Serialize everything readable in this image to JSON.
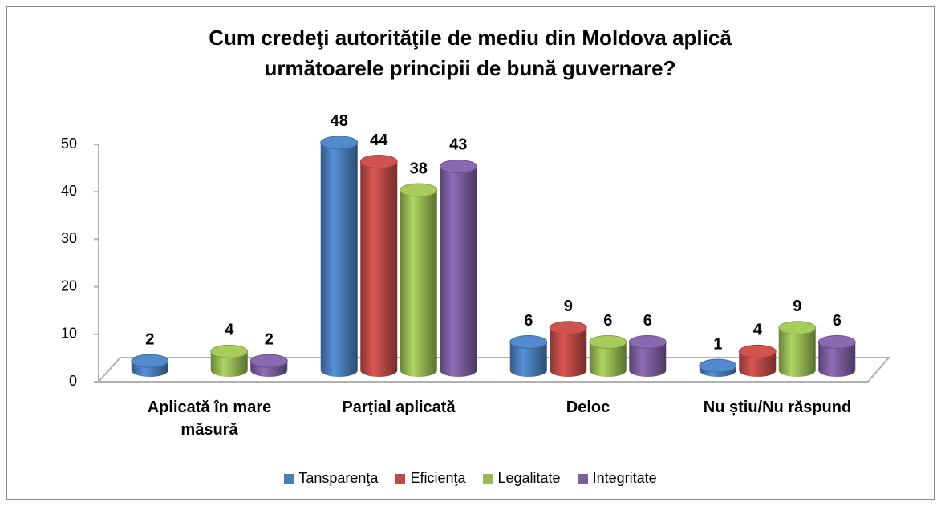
{
  "chart_data": {
    "type": "bar3d",
    "title": "Cum credeţi autorităţile de mediu din Moldova aplică următoarele principii de bună guvernare?",
    "categories": [
      "Aplicată în mare măsură",
      "Parțial aplicată",
      "Deloc",
      "Nu știu/Nu răspund"
    ],
    "series": [
      {
        "name": "Tansparenţa",
        "color": "#4a7ebb",
        "values": [
          2,
          48,
          6,
          1
        ]
      },
      {
        "name": "Eficienţa",
        "color": "#be4b48",
        "values": [
          null,
          44,
          9,
          4
        ]
      },
      {
        "name": "Legalitate",
        "color": "#98b954",
        "values": [
          4,
          38,
          6,
          9
        ]
      },
      {
        "name": "Integritate",
        "color": "#7d5fa0",
        "values": [
          2,
          43,
          6,
          6
        ]
      }
    ],
    "ylim": [
      0,
      50
    ],
    "yticks": [
      0,
      10,
      20,
      30,
      40,
      50
    ],
    "legend": "bottom"
  }
}
